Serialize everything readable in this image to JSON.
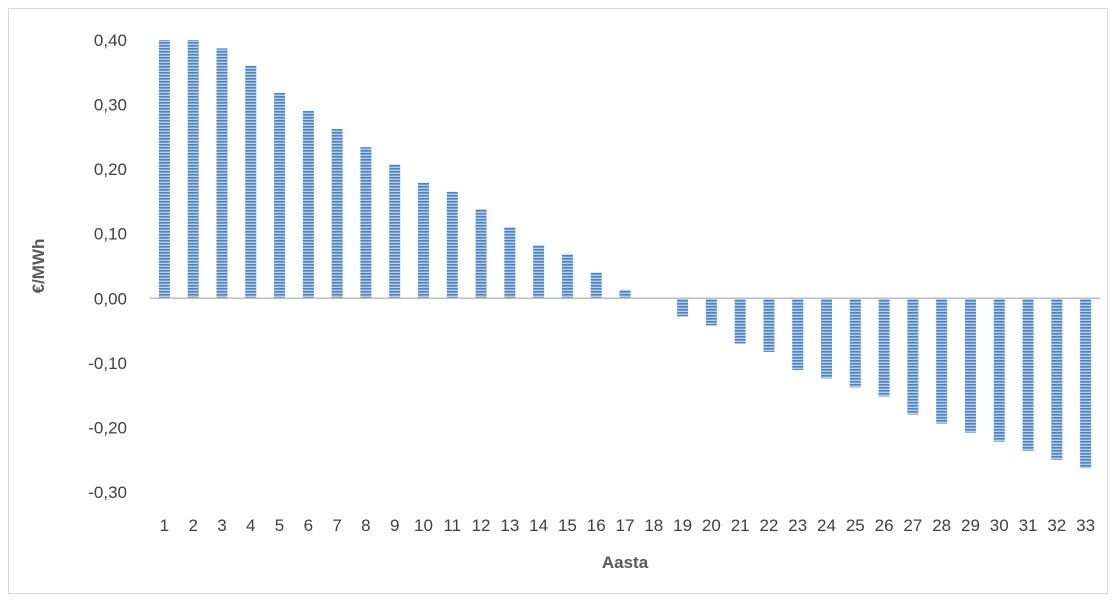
{
  "chart_data": {
    "type": "bar",
    "title": "",
    "xlabel": "Aasta",
    "ylabel": "€/MWh",
    "ylim": [
      -0.3,
      0.4
    ],
    "yticks": [
      "0,40",
      "0,30",
      "0,20",
      "0,10",
      "0,00",
      "-0,10",
      "-0,20",
      "-0,30"
    ],
    "categories": [
      "1",
      "2",
      "3",
      "4",
      "5",
      "6",
      "7",
      "8",
      "9",
      "10",
      "11",
      "12",
      "13",
      "14",
      "15",
      "16",
      "17",
      "18",
      "19",
      "20",
      "21",
      "22",
      "23",
      "24",
      "25",
      "26",
      "27",
      "28",
      "29",
      "30",
      "31",
      "32",
      "33"
    ],
    "values": [
      0.4,
      0.4,
      0.387,
      0.36,
      0.318,
      0.29,
      0.262,
      0.234,
      0.207,
      0.179,
      0.165,
      0.138,
      0.11,
      0.082,
      0.068,
      0.04,
      0.013,
      0.0,
      -0.028,
      -0.042,
      -0.07,
      -0.083,
      -0.111,
      -0.124,
      -0.138,
      -0.152,
      -0.18,
      -0.194,
      -0.208,
      -0.222,
      -0.236,
      -0.25,
      -0.263
    ],
    "grid": false,
    "legend": "none",
    "bar_color": "#4f81bd",
    "bar_stripe_color": "#9dc3e6",
    "zero_line_color": "#bfbfbf"
  }
}
